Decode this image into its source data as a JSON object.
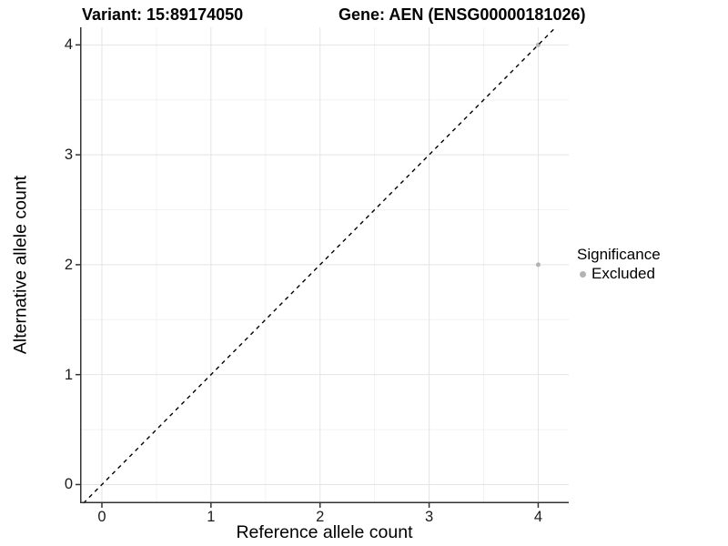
{
  "titles": {
    "variant": "Variant: 15:89174050",
    "gene": "Gene: AEN (ENSG00000181026)"
  },
  "axes": {
    "x": {
      "label": "Reference allele count",
      "ticks": [
        "0",
        "1",
        "2",
        "3",
        "4"
      ]
    },
    "y": {
      "label": "Alternative allele count",
      "ticks": [
        "0",
        "1",
        "2",
        "3",
        "4"
      ]
    }
  },
  "legend": {
    "title": "Significance",
    "items": [
      {
        "label": "Excluded",
        "color": "#b3b3b3"
      }
    ]
  },
  "colors": {
    "grid_major": "#e4e4e4",
    "grid_minor": "#f2f2f2",
    "axis_line": "#333333",
    "point": "#b3b3b3",
    "reference_line": "#000000",
    "text": "#000000"
  },
  "chart_data": {
    "type": "scatter",
    "title": "Variant: 15:89174050 | Gene: AEN (ENSG00000181026)",
    "xlabel": "Reference allele count",
    "ylabel": "Alternative allele count",
    "xlim": [
      -0.2,
      4.28
    ],
    "ylim": [
      -0.17,
      4.16
    ],
    "xticks": [
      0,
      1,
      2,
      3,
      4
    ],
    "yticks": [
      0,
      1,
      2,
      3,
      4
    ],
    "grid": true,
    "minor_grid": true,
    "legend_position": "right",
    "series": [
      {
        "name": "Excluded",
        "color": "#b3b3b3",
        "point_radius": 2.5,
        "points": [
          [
            4,
            2
          ],
          [
            4,
            4
          ]
        ]
      }
    ],
    "reference_line": {
      "kind": "identity",
      "equation": "y = x",
      "style": "dashed",
      "color": "#000000"
    }
  }
}
